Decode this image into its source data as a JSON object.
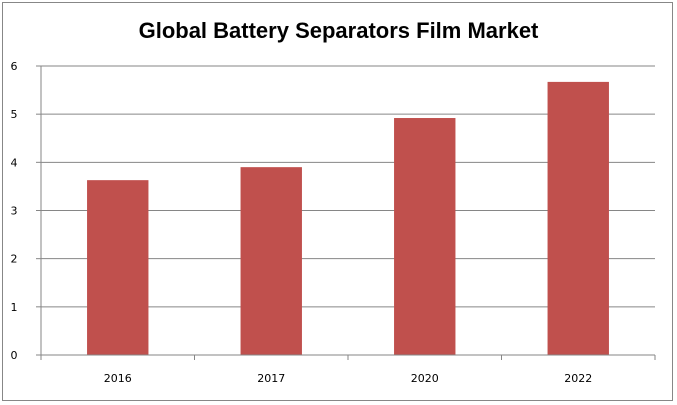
{
  "chart_data": {
    "type": "bar",
    "title": "Global Battery Separators Film Market",
    "categories": [
      "2016",
      "2017",
      "2020",
      "2022"
    ],
    "values": [
      3.63,
      3.9,
      4.92,
      5.67
    ],
    "ylim": [
      0,
      6
    ],
    "yticks": [
      0,
      1,
      2,
      3,
      4,
      5,
      6
    ],
    "grid": true,
    "legend": "none",
    "bar_color": "#C0504D",
    "grid_color": "#868686"
  }
}
